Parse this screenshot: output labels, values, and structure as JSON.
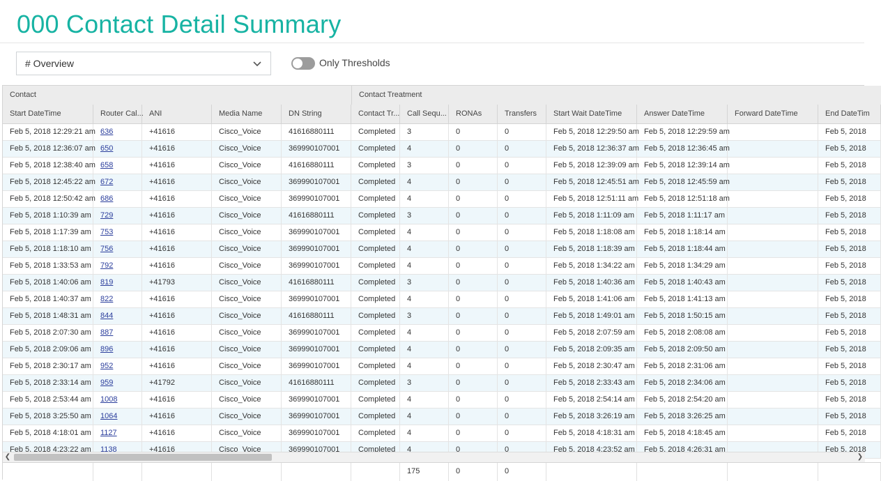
{
  "page": {
    "title": "000 Contact Detail Summary"
  },
  "controls": {
    "view_select_value": "# Overview",
    "toggle_label": "Only Thresholds",
    "toggle_on": false
  },
  "grid": {
    "groups": [
      {
        "label": "Contact",
        "span": 5
      },
      {
        "label": "Contact Treatment",
        "span": 8
      }
    ],
    "columns": [
      "Start DateTime",
      "Router Cal...",
      "ANI",
      "Media Name",
      "DN String",
      "Contact Tr...",
      "Call Sequ...",
      "RONAs",
      "Transfers",
      "Start Wait DateTime",
      "Answer DateTime",
      "Forward DateTime",
      "End DateTim"
    ],
    "rows": [
      [
        "Feb 5, 2018 12:29:21 am",
        "636",
        "+41616",
        "Cisco_Voice",
        "41616880111",
        "Completed",
        "3",
        "0",
        "0",
        "Feb 5, 2018 12:29:50 am",
        "Feb 5, 2018 12:29:59 am",
        "",
        "Feb 5, 2018"
      ],
      [
        "Feb 5, 2018 12:36:07 am",
        "650",
        "+41616",
        "Cisco_Voice",
        "369990107001",
        "Completed",
        "4",
        "0",
        "0",
        "Feb 5, 2018 12:36:37 am",
        "Feb 5, 2018 12:36:45 am",
        "",
        "Feb 5, 2018"
      ],
      [
        "Feb 5, 2018 12:38:40 am",
        "658",
        "+41616",
        "Cisco_Voice",
        "41616880111",
        "Completed",
        "3",
        "0",
        "0",
        "Feb 5, 2018 12:39:09 am",
        "Feb 5, 2018 12:39:14 am",
        "",
        "Feb 5, 2018"
      ],
      [
        "Feb 5, 2018 12:45:22 am",
        "672",
        "+41616",
        "Cisco_Voice",
        "369990107001",
        "Completed",
        "4",
        "0",
        "0",
        "Feb 5, 2018 12:45:51 am",
        "Feb 5, 2018 12:45:59 am",
        "",
        "Feb 5, 2018"
      ],
      [
        "Feb 5, 2018 12:50:42 am",
        "686",
        "+41616",
        "Cisco_Voice",
        "369990107001",
        "Completed",
        "4",
        "0",
        "0",
        "Feb 5, 2018 12:51:11 am",
        "Feb 5, 2018 12:51:18 am",
        "",
        "Feb 5, 2018"
      ],
      [
        "Feb 5, 2018 1:10:39 am",
        "729",
        "+41616",
        "Cisco_Voice",
        "41616880111",
        "Completed",
        "3",
        "0",
        "0",
        "Feb 5, 2018 1:11:09 am",
        "Feb 5, 2018 1:11:17 am",
        "",
        "Feb 5, 2018"
      ],
      [
        "Feb 5, 2018 1:17:39 am",
        "753",
        "+41616",
        "Cisco_Voice",
        "369990107001",
        "Completed",
        "4",
        "0",
        "0",
        "Feb 5, 2018 1:18:08 am",
        "Feb 5, 2018 1:18:14 am",
        "",
        "Feb 5, 2018"
      ],
      [
        "Feb 5, 2018 1:18:10 am",
        "756",
        "+41616",
        "Cisco_Voice",
        "369990107001",
        "Completed",
        "4",
        "0",
        "0",
        "Feb 5, 2018 1:18:39 am",
        "Feb 5, 2018 1:18:44 am",
        "",
        "Feb 5, 2018"
      ],
      [
        "Feb 5, 2018 1:33:53 am",
        "792",
        "+41616",
        "Cisco_Voice",
        "369990107001",
        "Completed",
        "4",
        "0",
        "0",
        "Feb 5, 2018 1:34:22 am",
        "Feb 5, 2018 1:34:29 am",
        "",
        "Feb 5, 2018"
      ],
      [
        "Feb 5, 2018 1:40:06 am",
        "819",
        "+41793",
        "Cisco_Voice",
        "41616880111",
        "Completed",
        "3",
        "0",
        "0",
        "Feb 5, 2018 1:40:36 am",
        "Feb 5, 2018 1:40:43 am",
        "",
        "Feb 5, 2018"
      ],
      [
        "Feb 5, 2018 1:40:37 am",
        "822",
        "+41616",
        "Cisco_Voice",
        "369990107001",
        "Completed",
        "4",
        "0",
        "0",
        "Feb 5, 2018 1:41:06 am",
        "Feb 5, 2018 1:41:13 am",
        "",
        "Feb 5, 2018"
      ],
      [
        "Feb 5, 2018 1:48:31 am",
        "844",
        "+41616",
        "Cisco_Voice",
        "41616880111",
        "Completed",
        "3",
        "0",
        "0",
        "Feb 5, 2018 1:49:01 am",
        "Feb 5, 2018 1:50:15 am",
        "",
        "Feb 5, 2018"
      ],
      [
        "Feb 5, 2018 2:07:30 am",
        "887",
        "+41616",
        "Cisco_Voice",
        "369990107001",
        "Completed",
        "4",
        "0",
        "0",
        "Feb 5, 2018 2:07:59 am",
        "Feb 5, 2018 2:08:08 am",
        "",
        "Feb 5, 2018"
      ],
      [
        "Feb 5, 2018 2:09:06 am",
        "896",
        "+41616",
        "Cisco_Voice",
        "369990107001",
        "Completed",
        "4",
        "0",
        "0",
        "Feb 5, 2018 2:09:35 am",
        "Feb 5, 2018 2:09:50 am",
        "",
        "Feb 5, 2018"
      ],
      [
        "Feb 5, 2018 2:30:17 am",
        "952",
        "+41616",
        "Cisco_Voice",
        "369990107001",
        "Completed",
        "4",
        "0",
        "0",
        "Feb 5, 2018 2:30:47 am",
        "Feb 5, 2018 2:31:06 am",
        "",
        "Feb 5, 2018"
      ],
      [
        "Feb 5, 2018 2:33:14 am",
        "959",
        "+41792",
        "Cisco_Voice",
        "41616880111",
        "Completed",
        "3",
        "0",
        "0",
        "Feb 5, 2018 2:33:43 am",
        "Feb 5, 2018 2:34:06 am",
        "",
        "Feb 5, 2018"
      ],
      [
        "Feb 5, 2018 2:53:44 am",
        "1008",
        "+41616",
        "Cisco_Voice",
        "369990107001",
        "Completed",
        "4",
        "0",
        "0",
        "Feb 5, 2018 2:54:14 am",
        "Feb 5, 2018 2:54:20 am",
        "",
        "Feb 5, 2018"
      ],
      [
        "Feb 5, 2018 3:25:50 am",
        "1064",
        "+41616",
        "Cisco_Voice",
        "369990107001",
        "Completed",
        "4",
        "0",
        "0",
        "Feb 5, 2018 3:26:19 am",
        "Feb 5, 2018 3:26:25 am",
        "",
        "Feb 5, 2018"
      ],
      [
        "Feb 5, 2018 4:18:01 am",
        "1127",
        "+41616",
        "Cisco_Voice",
        "369990107001",
        "Completed",
        "4",
        "0",
        "0",
        "Feb 5, 2018 4:18:31 am",
        "Feb 5, 2018 4:18:45 am",
        "",
        "Feb 5, 2018"
      ],
      [
        "Feb 5, 2018 4:23:22 am",
        "1138",
        "+41616",
        "Cisco_Voice",
        "369990107001",
        "Completed",
        "4",
        "0",
        "0",
        "Feb 5, 2018 4:23:52 am",
        "Feb 5, 2018 4:26:31 am",
        "",
        "Feb 5, 2018"
      ]
    ],
    "totals": [
      "",
      "",
      "",
      "",
      "",
      "",
      "175",
      "0",
      "0",
      "",
      "",
      "",
      ""
    ]
  },
  "colors": {
    "title": "#17b3a3",
    "link": "#2b3e9c",
    "row_alt": "#eef7fb"
  },
  "icons": {
    "select": "chevron-down-icon",
    "scroll_left": "arrow-left-icon",
    "scroll_right": "arrow-right-icon"
  }
}
